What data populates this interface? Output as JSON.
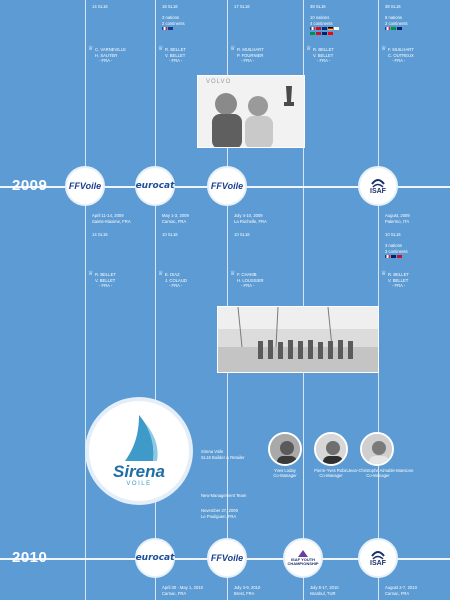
{
  "colors": {
    "background": "#5c9bd3",
    "line": "#ffffff",
    "ffvoile_blue": "#1b3f8f",
    "eurocat_green": "#8cc63f",
    "sirena_teal": "#3e9bc9"
  },
  "top_events": [
    {
      "detail": "14 SL16",
      "crew": "C. VARNEVILLE\nH. SAUTER",
      "nation": "- FRA -"
    },
    {
      "detail": "18 SL16",
      "count": "3 nations\n2 continents",
      "crew": "R. BELLET\nV. BELLET",
      "nation": "- FRA -"
    },
    {
      "detail": "17 SL16",
      "crew": "R. MUILHART\nP. FOURNIER",
      "nation": "- FRA -"
    },
    {
      "detail": "38 SL16",
      "count": "10 nations\n4 continents",
      "crew": "R. BELLET\nV. BELLET",
      "nation": "- FRA -"
    },
    {
      "detail": "38 SL16",
      "count": "8 nations\n2 continents",
      "crew": "F. MUILHART\nC. OUTREUX",
      "nation": "- FRA -"
    }
  ],
  "photo_top_label": "VOLVO",
  "y2009": {
    "year": "2009",
    "events": [
      {
        "logo": "FFVoile",
        "date": "April 11-14, 2009\nSainte-Maxime, FRA",
        "detail": "14 SL16",
        "crew": "R. BELLET\nV. BELLET",
        "nation": "- FRA -"
      },
      {
        "logo": "eurocat",
        "date": "May 1-3, 2009\nCarnac, FRA",
        "detail": "10 SL16",
        "crew": "E. DIAZ\nJ. COLAUD",
        "nation": "- FRA -"
      },
      {
        "logo": "FFVoile",
        "date": "July 4-10, 2009\nLa Rochelle, FRA",
        "detail": "10 SL16",
        "crew": "F. CHAMB\nH. LOUSSIER",
        "nation": "- FRA -"
      },
      {
        "logo": "ISAF",
        "date": "August, 2009\nPalermo, ITA",
        "detail": "10 SL16",
        "count": "3 nations\n3 continents",
        "crew": "R. BELLET\nV. BELLET",
        "nation": "- FRA -"
      }
    ]
  },
  "sirena": {
    "logo_word": "Sirena",
    "logo_sub": "VOILE",
    "notes": [
      "Sirena Voile\nSL16 Builder & Retailer",
      "New Management Team",
      "November 27, 2009\nLe Pouliguen, FRA"
    ],
    "managers": [
      {
        "name": "Yves Loday\nCo-Manager"
      },
      {
        "name": "Pierre-Yves Robin\nCo-Manager"
      },
      {
        "name": "Jean-Christophe Aimable-Mansone\nCo-Manager"
      }
    ]
  },
  "y2010": {
    "year": "2010",
    "events": [
      {
        "logo": "eurocat",
        "date": "April 30 - May 1, 2010\nCarnac, FRA"
      },
      {
        "logo": "FFVoile",
        "date": "July 3-9, 2010\nBrest, FRA"
      },
      {
        "logo": "ISAF YOUTH CHAMPIONSHIP",
        "date": "July 8-17, 2010\nIstanbul, TUR"
      },
      {
        "logo": "ISAF",
        "date": "August 2-7, 2010\nCarnac, FRA"
      }
    ]
  }
}
